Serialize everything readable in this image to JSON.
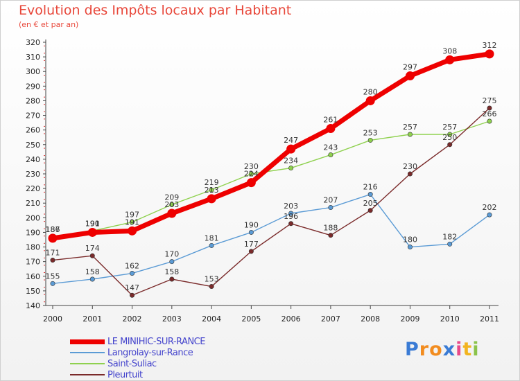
{
  "header": {
    "title": "Evolution des Impôts locaux par Habitant",
    "subtitle": "(en € et par an)"
  },
  "logo": {
    "text": "Proxiti",
    "letters": [
      {
        "ch": "P",
        "color": "#3a7bd5"
      },
      {
        "ch": "r",
        "color": "#f28c1f"
      },
      {
        "ch": "o",
        "color": "#f28c1f"
      },
      {
        "ch": "x",
        "color": "#3a7bd5"
      },
      {
        "ch": "i",
        "color": "#e84a8a"
      },
      {
        "ch": "t",
        "color": "#f2b41f"
      },
      {
        "ch": "i",
        "color": "#8bc34a"
      }
    ]
  },
  "chart_data": {
    "type": "line",
    "title": "Evolution des Impôts locaux par Habitant",
    "subtitle": "(en € et par an)",
    "xlabel": "",
    "ylabel": "",
    "x": [
      "2000",
      "2001",
      "2002",
      "2003",
      "2004",
      "2005",
      "2006",
      "2007",
      "2008",
      "2009",
      "2010",
      "2011"
    ],
    "ylim": [
      140,
      320
    ],
    "yticks": [
      140,
      150,
      160,
      170,
      180,
      190,
      200,
      210,
      220,
      230,
      240,
      250,
      260,
      270,
      280,
      290,
      300,
      310,
      320
    ],
    "grid": false,
    "legend": "bottom-left",
    "series": [
      {
        "name": "Langrolay-sur-Rance",
        "color": "#5b9bd5",
        "values": [
          155,
          158,
          162,
          170,
          181,
          190,
          203,
          207,
          216,
          180,
          182,
          202
        ],
        "labels": [
          "155",
          "158",
          "162",
          "170",
          "181",
          "190",
          "203",
          "207",
          "216",
          "180",
          "182",
          "202"
        ]
      },
      {
        "name": "Saint-Suliac",
        "color": "#8fd14f",
        "values": [
          187,
          191,
          197,
          209,
          219,
          230,
          234,
          243,
          253,
          257,
          257,
          266
        ],
        "labels": [
          "187",
          "191",
          "197",
          "209",
          "219",
          "230",
          "234",
          "243",
          "253",
          "257",
          "257",
          "266"
        ]
      },
      {
        "name": "Pleurtuit",
        "color": "#7a2a2a",
        "values": [
          171,
          174,
          147,
          158,
          153,
          177,
          196,
          188,
          205,
          230,
          250,
          275
        ],
        "labels": [
          "171",
          "174",
          "147",
          "158",
          "153",
          "177",
          "196",
          "188",
          "205",
          "230",
          "250",
          "275"
        ]
      },
      {
        "name": "LE MINIHIC-SUR-RANCE",
        "color": "#ee0000",
        "values": [
          186,
          190,
          191,
          203,
          213,
          224,
          247,
          261,
          280,
          297,
          308,
          312
        ],
        "labels": [
          "186",
          "190",
          "191",
          "203",
          "213",
          "224",
          "247",
          "261",
          "280",
          "297",
          "308",
          "312"
        ]
      }
    ]
  },
  "legend": [
    {
      "name": "LE MINIHIC-SUR-RANCE",
      "color": "#ee0000",
      "thick": true
    },
    {
      "name": "Langrolay-sur-Rance",
      "color": "#5b9bd5",
      "thick": false
    },
    {
      "name": "Saint-Suliac",
      "color": "#8fd14f",
      "thick": false
    },
    {
      "name": "Pleurtuit",
      "color": "#7a2a2a",
      "thick": false
    }
  ]
}
